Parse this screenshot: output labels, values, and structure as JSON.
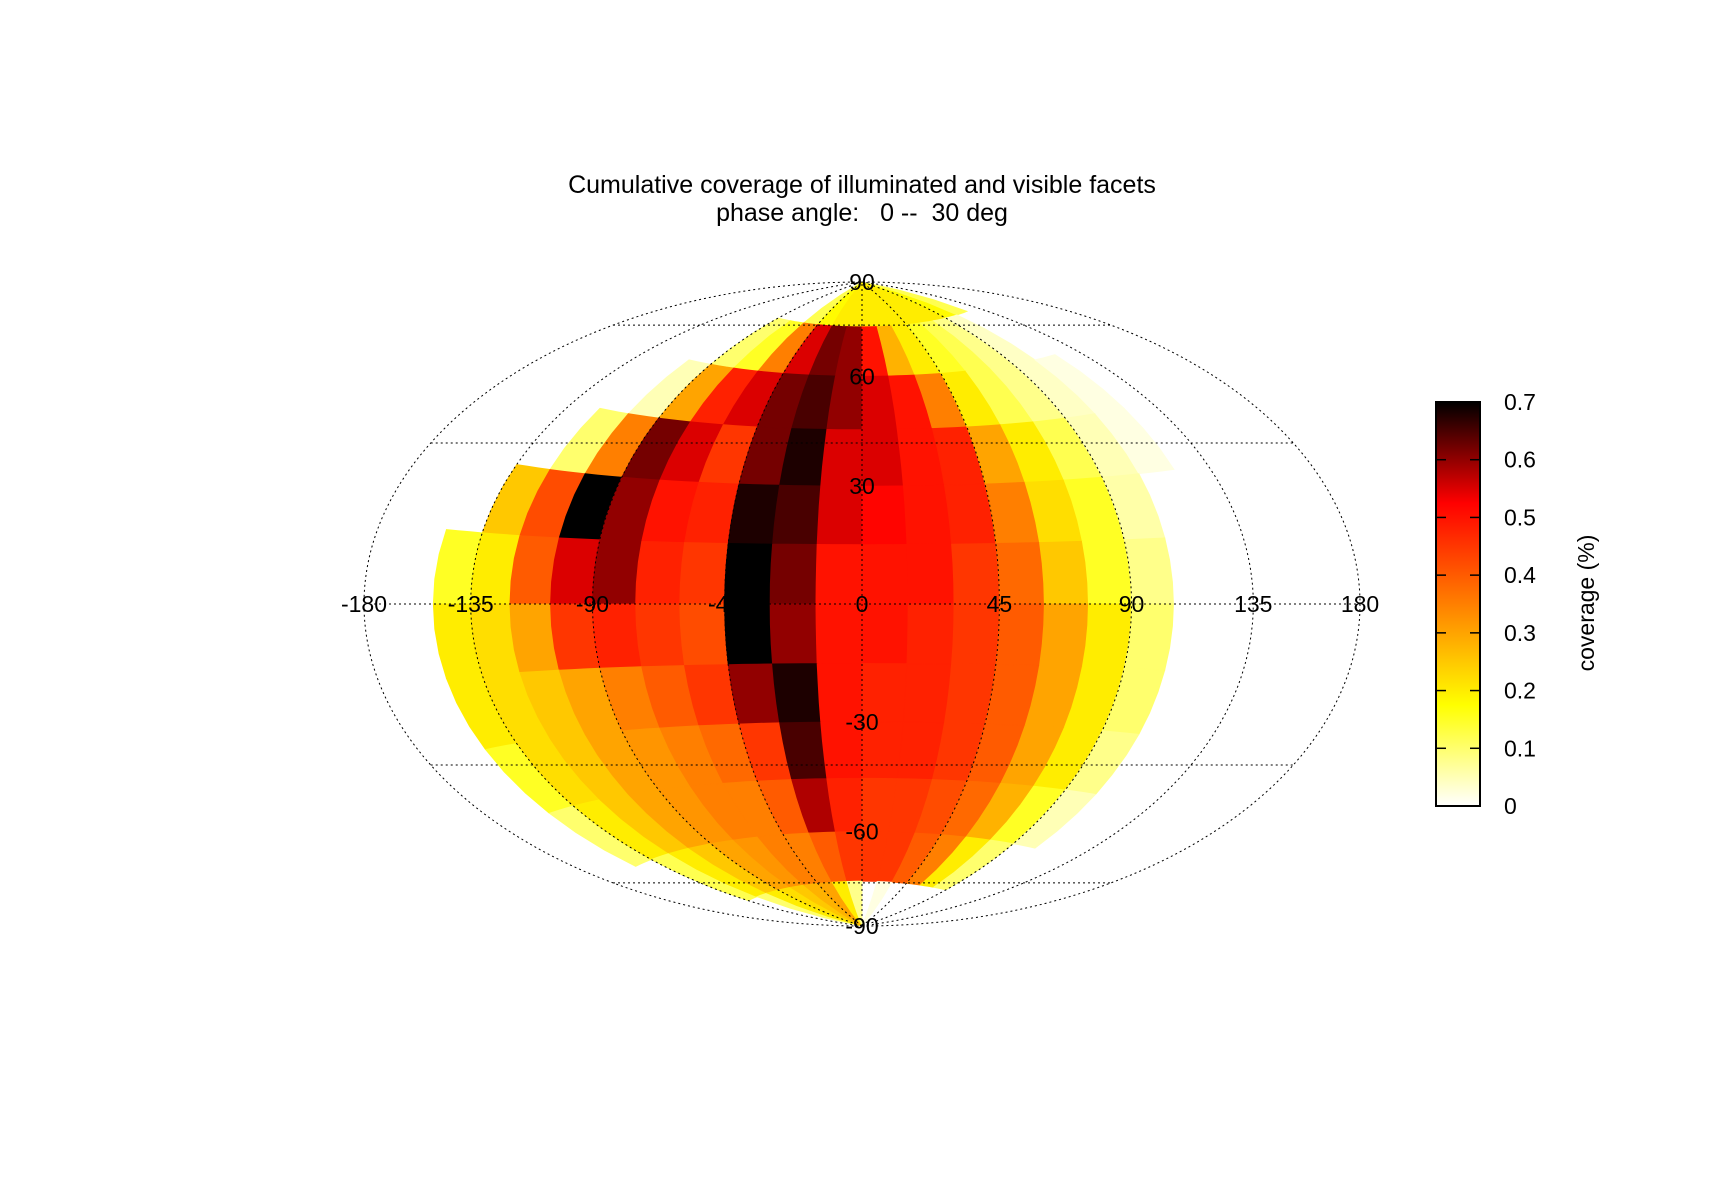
{
  "chart_data": {
    "type": "heatmap",
    "projection": "hammer-aitoff",
    "title": "Cumulative coverage of illuminated and visible facets",
    "subtitle": "phase angle:   0 --  30 deg",
    "colorbar": {
      "label": "coverage (%)",
      "range": [
        0,
        0.7
      ],
      "ticks": [
        "0",
        "0.1",
        "0.2",
        "0.3",
        "0.4",
        "0.5",
        "0.6",
        "0.7"
      ],
      "colormap": "hot (white-yellow-orange-red-black)",
      "colors": [
        "#ffffff",
        "#ffff00",
        "#ff7f00",
        "#ff0000",
        "#000000"
      ]
    },
    "longitude_ticks": [
      "-180",
      "-135",
      "-90",
      "-45",
      "0",
      "45",
      "90",
      "135",
      "180"
    ],
    "latitude_ticks": [
      "90",
      "60",
      "30",
      "-30",
      "-60",
      "-90"
    ],
    "grid": true,
    "cell_size_deg": [
      15,
      15
    ],
    "grid_rows_note": "rows from latitude 90 (top) down to -90 (bottom); columns from longitude -180 to 180 in 15 deg steps",
    "values": [
      [
        0,
        0,
        0,
        0,
        0,
        0,
        0,
        0,
        0.12,
        0.18,
        0.2,
        0.2,
        0.2,
        0.2,
        0.2,
        0.2,
        0.2,
        0.2,
        0.18,
        0.12,
        0,
        0,
        0,
        0
      ],
      [
        0,
        0,
        0,
        0,
        0,
        0,
        0.1,
        0.15,
        0.35,
        0.55,
        0.62,
        0.6,
        0.5,
        0.28,
        0.2,
        0.15,
        0.12,
        0.08,
        0.04,
        0,
        0,
        0,
        0,
        0
      ],
      [
        0,
        0,
        0,
        0,
        0,
        0.05,
        0.3,
        0.48,
        0.55,
        0.62,
        0.65,
        0.6,
        0.55,
        0.5,
        0.35,
        0.2,
        0.12,
        0.08,
        0.04,
        0.02,
        0,
        0,
        0,
        0
      ],
      [
        0,
        0,
        0,
        0,
        0.1,
        0.35,
        0.62,
        0.55,
        0.45,
        0.62,
        0.68,
        0.55,
        0.55,
        0.5,
        0.48,
        0.3,
        0.2,
        0.12,
        0.05,
        0.02,
        0,
        0,
        0,
        0
      ],
      [
        0,
        0,
        0,
        0.25,
        0.42,
        0.7,
        0.6,
        0.5,
        0.48,
        0.68,
        0.65,
        0.55,
        0.52,
        0.5,
        0.48,
        0.35,
        0.22,
        0.15,
        0.06,
        0,
        0,
        0,
        0,
        0
      ],
      [
        0,
        0,
        0.15,
        0.2,
        0.4,
        0.55,
        0.6,
        0.48,
        0.45,
        0.7,
        0.62,
        0.5,
        0.5,
        0.5,
        0.45,
        0.38,
        0.25,
        0.15,
        0.08,
        0,
        0,
        0,
        0,
        0
      ],
      [
        0,
        0,
        0.2,
        0.22,
        0.3,
        0.45,
        0.48,
        0.45,
        0.42,
        0.7,
        0.6,
        0.5,
        0.5,
        0.48,
        0.45,
        0.4,
        0.3,
        0.2,
        0.1,
        0,
        0,
        0,
        0,
        0
      ],
      [
        0,
        0,
        0.2,
        0.22,
        0.25,
        0.3,
        0.35,
        0.4,
        0.45,
        0.6,
        0.68,
        0.5,
        0.48,
        0.48,
        0.45,
        0.4,
        0.3,
        0.2,
        0.1,
        0,
        0,
        0,
        0,
        0
      ],
      [
        0,
        0,
        0.15,
        0.22,
        0.25,
        0.3,
        0.32,
        0.35,
        0.38,
        0.45,
        0.65,
        0.5,
        0.48,
        0.48,
        0.45,
        0.4,
        0.3,
        0.2,
        0.08,
        0,
        0,
        0,
        0,
        0
      ],
      [
        0,
        0,
        0.1,
        0.2,
        0.25,
        0.3,
        0.32,
        0.35,
        0.35,
        0.4,
        0.58,
        0.48,
        0.45,
        0.45,
        0.42,
        0.38,
        0.28,
        0.15,
        0.05,
        0,
        0,
        0,
        0,
        0
      ],
      [
        0,
        0,
        0,
        0.12,
        0.2,
        0.25,
        0.3,
        0.32,
        0.35,
        0.35,
        0.4,
        0.45,
        0.45,
        0.45,
        0.4,
        0.35,
        0.2,
        0.1,
        0,
        0,
        0,
        0,
        0,
        0
      ],
      [
        0,
        0,
        0,
        0,
        0.1,
        0.2,
        0.22,
        0.25,
        0.28,
        0.3,
        0.2,
        0.08,
        0,
        0.02,
        0,
        0,
        0,
        0,
        0,
        0,
        0,
        0,
        0,
        0
      ]
    ]
  }
}
